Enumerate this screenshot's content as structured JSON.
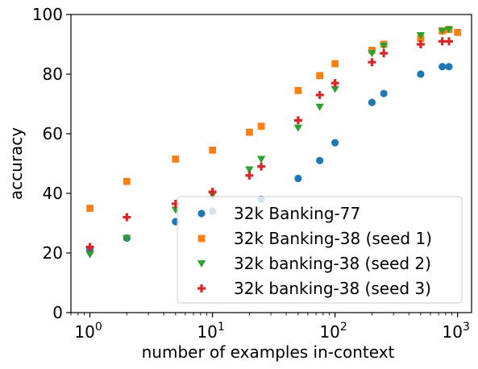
{
  "chart_data": {
    "type": "scatter",
    "title": "",
    "xlabel": "number of examples in-context",
    "ylabel": "accuracy",
    "xscale": "log",
    "xlim": [
      0.7,
      1300
    ],
    "ylim": [
      0,
      100
    ],
    "x_ticks": [
      {
        "base": "10",
        "exp": "0"
      },
      {
        "base": "10",
        "exp": "1"
      },
      {
        "base": "10",
        "exp": "2"
      },
      {
        "base": "10",
        "exp": "3"
      }
    ],
    "x_tick_values": [
      1,
      10,
      100,
      1000
    ],
    "y_ticks": [
      "0",
      "20",
      "40",
      "60",
      "80",
      "100"
    ],
    "y_tick_values": [
      0,
      20,
      40,
      60,
      80,
      100
    ],
    "grid": false,
    "legend_position": "lower-right",
    "series": [
      {
        "name": "32k Banking-77",
        "marker": "circle",
        "color": "#1f77b4",
        "points": [
          [
            1,
            21
          ],
          [
            2,
            25
          ],
          [
            5,
            30.5
          ],
          [
            10,
            34
          ],
          [
            25,
            38
          ],
          [
            50,
            45
          ],
          [
            75,
            51
          ],
          [
            100,
            57
          ],
          [
            200,
            70.5
          ],
          [
            250,
            73.5
          ],
          [
            500,
            80
          ],
          [
            750,
            82.5
          ],
          [
            850,
            82.5
          ]
        ]
      },
      {
        "name": "32k Banking-38 (seed 1)",
        "marker": "square",
        "color": "#ff7f0e",
        "points": [
          [
            1,
            35
          ],
          [
            2,
            44
          ],
          [
            5,
            51.5
          ],
          [
            10,
            54.5
          ],
          [
            20,
            60.5
          ],
          [
            25,
            62.5
          ],
          [
            50,
            74.5
          ],
          [
            75,
            79.5
          ],
          [
            100,
            83.5
          ],
          [
            200,
            88
          ],
          [
            250,
            90
          ],
          [
            500,
            92
          ],
          [
            750,
            94.5
          ],
          [
            850,
            95
          ],
          [
            1000,
            94
          ]
        ]
      },
      {
        "name": "32k banking-38 (seed 2)",
        "marker": "triangle-down",
        "color": "#2ca02c",
        "points": [
          [
            1,
            19.5
          ],
          [
            2,
            25
          ],
          [
            5,
            34.5
          ],
          [
            10,
            39.5
          ],
          [
            20,
            48
          ],
          [
            25,
            51.5
          ],
          [
            50,
            62
          ],
          [
            75,
            69
          ],
          [
            100,
            75
          ],
          [
            200,
            87
          ],
          [
            250,
            89.5
          ],
          [
            500,
            93
          ],
          [
            750,
            94.5
          ],
          [
            850,
            95
          ]
        ]
      },
      {
        "name": "32k banking-38 (seed 3)",
        "marker": "plus",
        "color": "#d62728",
        "points": [
          [
            1,
            22
          ],
          [
            2,
            32
          ],
          [
            5,
            36.5
          ],
          [
            10,
            40.5
          ],
          [
            20,
            46
          ],
          [
            25,
            49
          ],
          [
            50,
            64.5
          ],
          [
            75,
            73
          ],
          [
            100,
            77
          ],
          [
            200,
            84
          ],
          [
            250,
            87
          ],
          [
            500,
            90
          ],
          [
            750,
            91
          ],
          [
            850,
            91
          ]
        ]
      }
    ]
  }
}
